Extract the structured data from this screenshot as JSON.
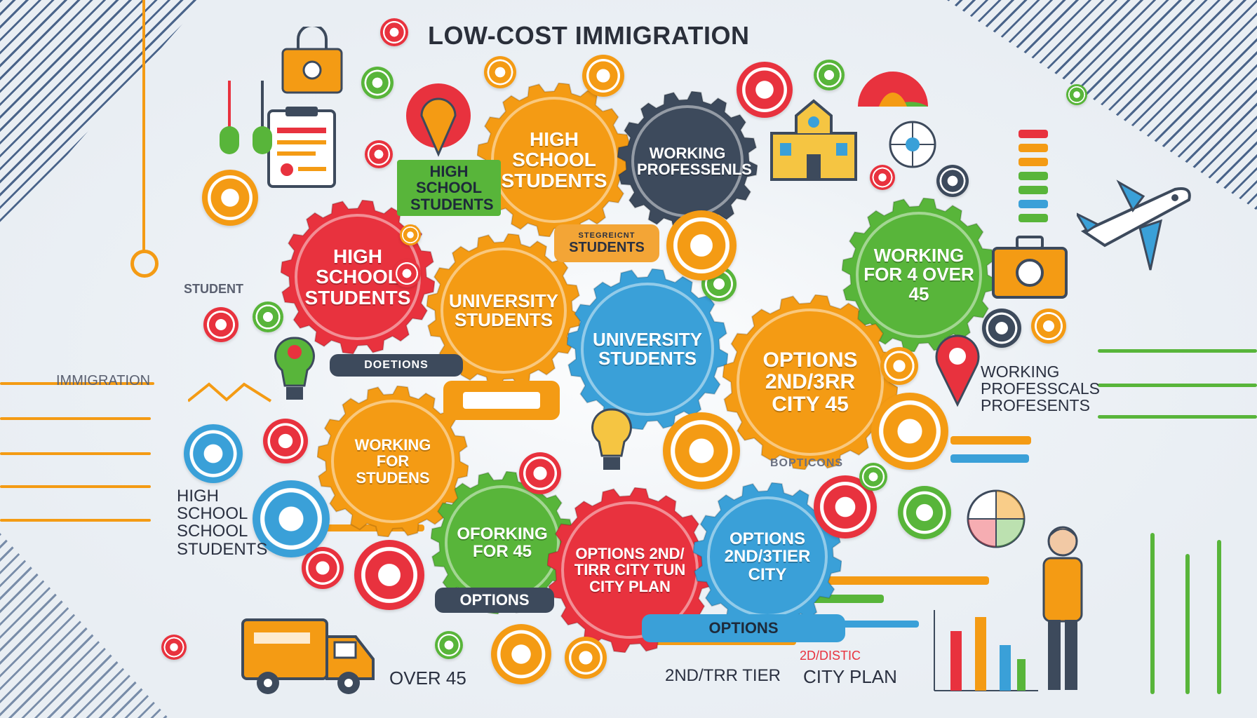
{
  "title": "LOW-COST IMMIGRATION",
  "gears": [
    {
      "label": "HIGH SCHOOL STUDENTS",
      "color": "#f49b14"
    },
    {
      "label": "WORKING PROFESSENLS",
      "color": "#3d4a5c"
    },
    {
      "label": "HIGH SCHOOL STUDENTS",
      "color": "#e8323e"
    },
    {
      "label": "UNIVERSITY STUDENTS",
      "color": "#f49b14"
    },
    {
      "label": "UNIVERSITY STUDENTS",
      "color": "#3aa0d8"
    },
    {
      "label": "WORKING FOR 4 OVER 45",
      "color": "#58b53a"
    },
    {
      "label": "OPTIONS 2ND/3RR CITY 45",
      "color": "#f49b14"
    },
    {
      "label": "WORKING FOR STUDENS",
      "color": "#f49b14"
    },
    {
      "label": "OFORKING FOR 45",
      "color": "#58b53a"
    },
    {
      "label": "OPTIONS 2ND/ TIRR CITY TUN CITY PLAN",
      "color": "#e8323e"
    },
    {
      "label": "OPTIONS 2ND/3TIER CITY",
      "color": "#3aa0d8"
    }
  ],
  "tags": {
    "high_school_green": "HIGH SCHOOL STUDENTS",
    "student_left": "STUDENT",
    "students_pill": "STUDENTS",
    "students_pill_sub": "STEGREICNT",
    "immigration_left": "IMMIGRATION",
    "doetions": "DOETIONS",
    "boptions": "BOPTICONS",
    "high_school_left": "HIGH SCHOOL SCHOOL STUDENTS",
    "options_pill": "OPTIONS",
    "options_bottom": "OPTIONS",
    "working_right": "WORKING PROFESSCALS PROFESENTS",
    "over_45": "OVER 45",
    "tier_bottom": "2ND/TRR TIER",
    "district": "2D/DISTIC",
    "city_plan": "CITY PLAN"
  },
  "icons": [
    "bag-icon",
    "clipboard-icon",
    "airplane-icon",
    "truck-icon",
    "school-icon",
    "umbrella-icon",
    "briefcase-icon",
    "map-pin-icon",
    "lightbulb-icon",
    "person-icon",
    "bar-chart-icon",
    "pie-chart-icon",
    "compass-icon",
    "target-icon"
  ],
  "colors": {
    "orange": "#f49b14",
    "red": "#e8323e",
    "green": "#58b53a",
    "blue": "#3aa0d8",
    "navy": "#2e4c78",
    "dark": "#3d4a5c"
  }
}
